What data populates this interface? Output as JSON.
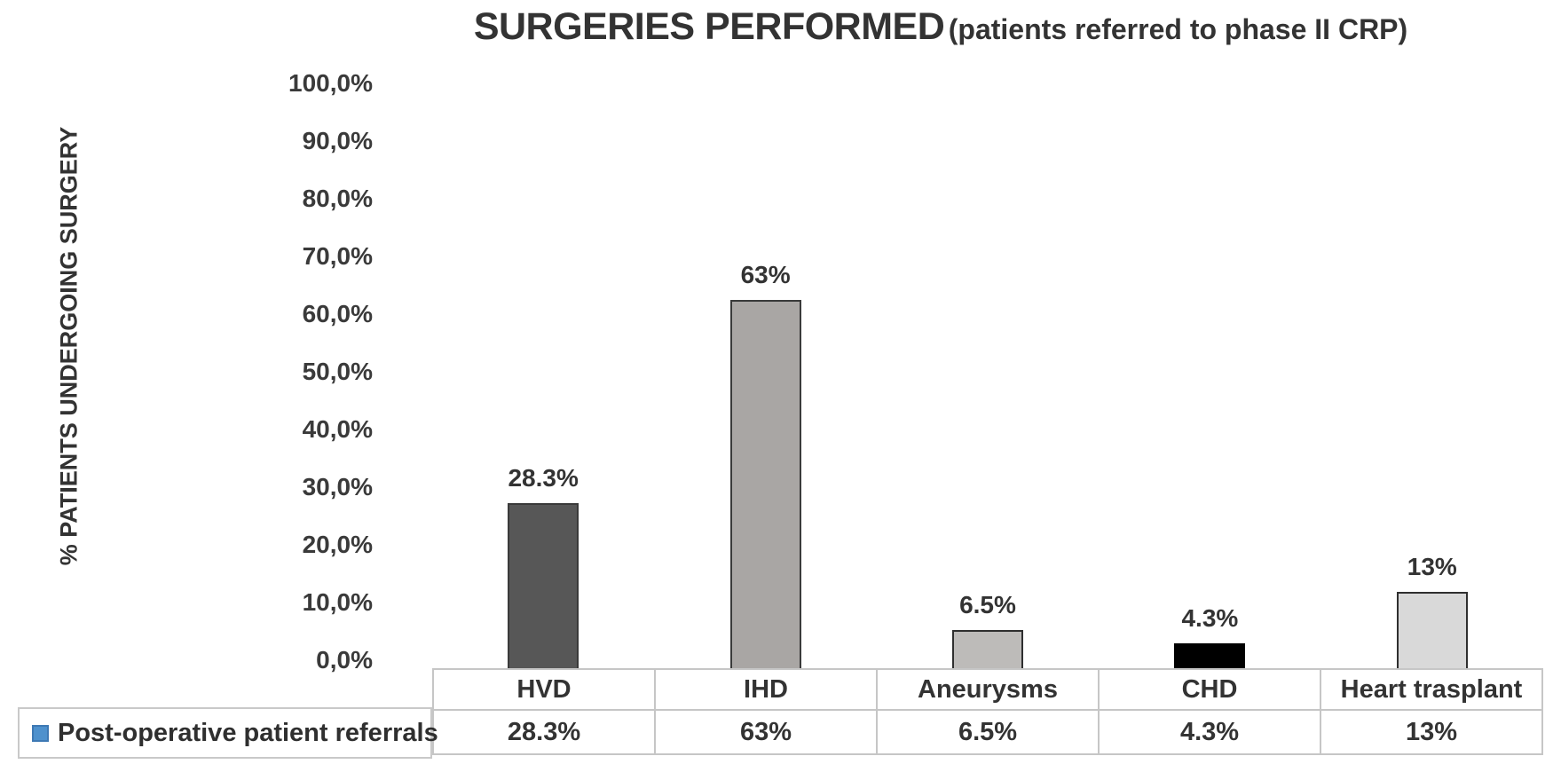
{
  "title": {
    "main": "SURGERIES PERFORMED",
    "sub": "(patients referred to phase II CRP)"
  },
  "y_axis_label": "% PATIENTS UNDERGOING SURGERY",
  "legend": {
    "series_label": "Post-operative patient referrals",
    "marker_color": "#4e91cd",
    "marker_border_color": "#3e79b4"
  },
  "chart_data": {
    "type": "bar",
    "title": "SURGERIES PERFORMED (patients referred to phase II CRP)",
    "xlabel": "",
    "ylabel": "% PATIENTS UNDERGOING SURGERY",
    "categories": [
      "HVD",
      "IHD",
      "Aneurysms",
      "CHD",
      "Heart trasplant"
    ],
    "series": [
      {
        "name": "Post-operative patient referrals",
        "values": [
          28.3,
          63,
          6.5,
          4.3,
          13
        ]
      }
    ],
    "data_labels": [
      "28.3%",
      "63%",
      "6.5%",
      "4.3%",
      "13%"
    ],
    "table_values": [
      "28.3%",
      "63%",
      "6.5%",
      "4.3%",
      "13%"
    ],
    "ylim": [
      0,
      100
    ],
    "yticks": [
      "100,0%",
      "90,0%",
      "80,0%",
      "70,0%",
      "60,0%",
      "50,0%",
      "40,0%",
      "30,0%",
      "20,0%",
      "10,0%",
      "0,0%"
    ],
    "grid": false,
    "legend_position": "bottom-left",
    "bar_colors": [
      "#575757",
      "#a9a6a4",
      "#bdbbb9",
      "#000000",
      "#d9d9d9"
    ],
    "bar_border_colors": [
      "#3a3a3a",
      "#3a3a3a",
      "#2f2f2f",
      "#000000",
      "#2f2f2f"
    ]
  }
}
